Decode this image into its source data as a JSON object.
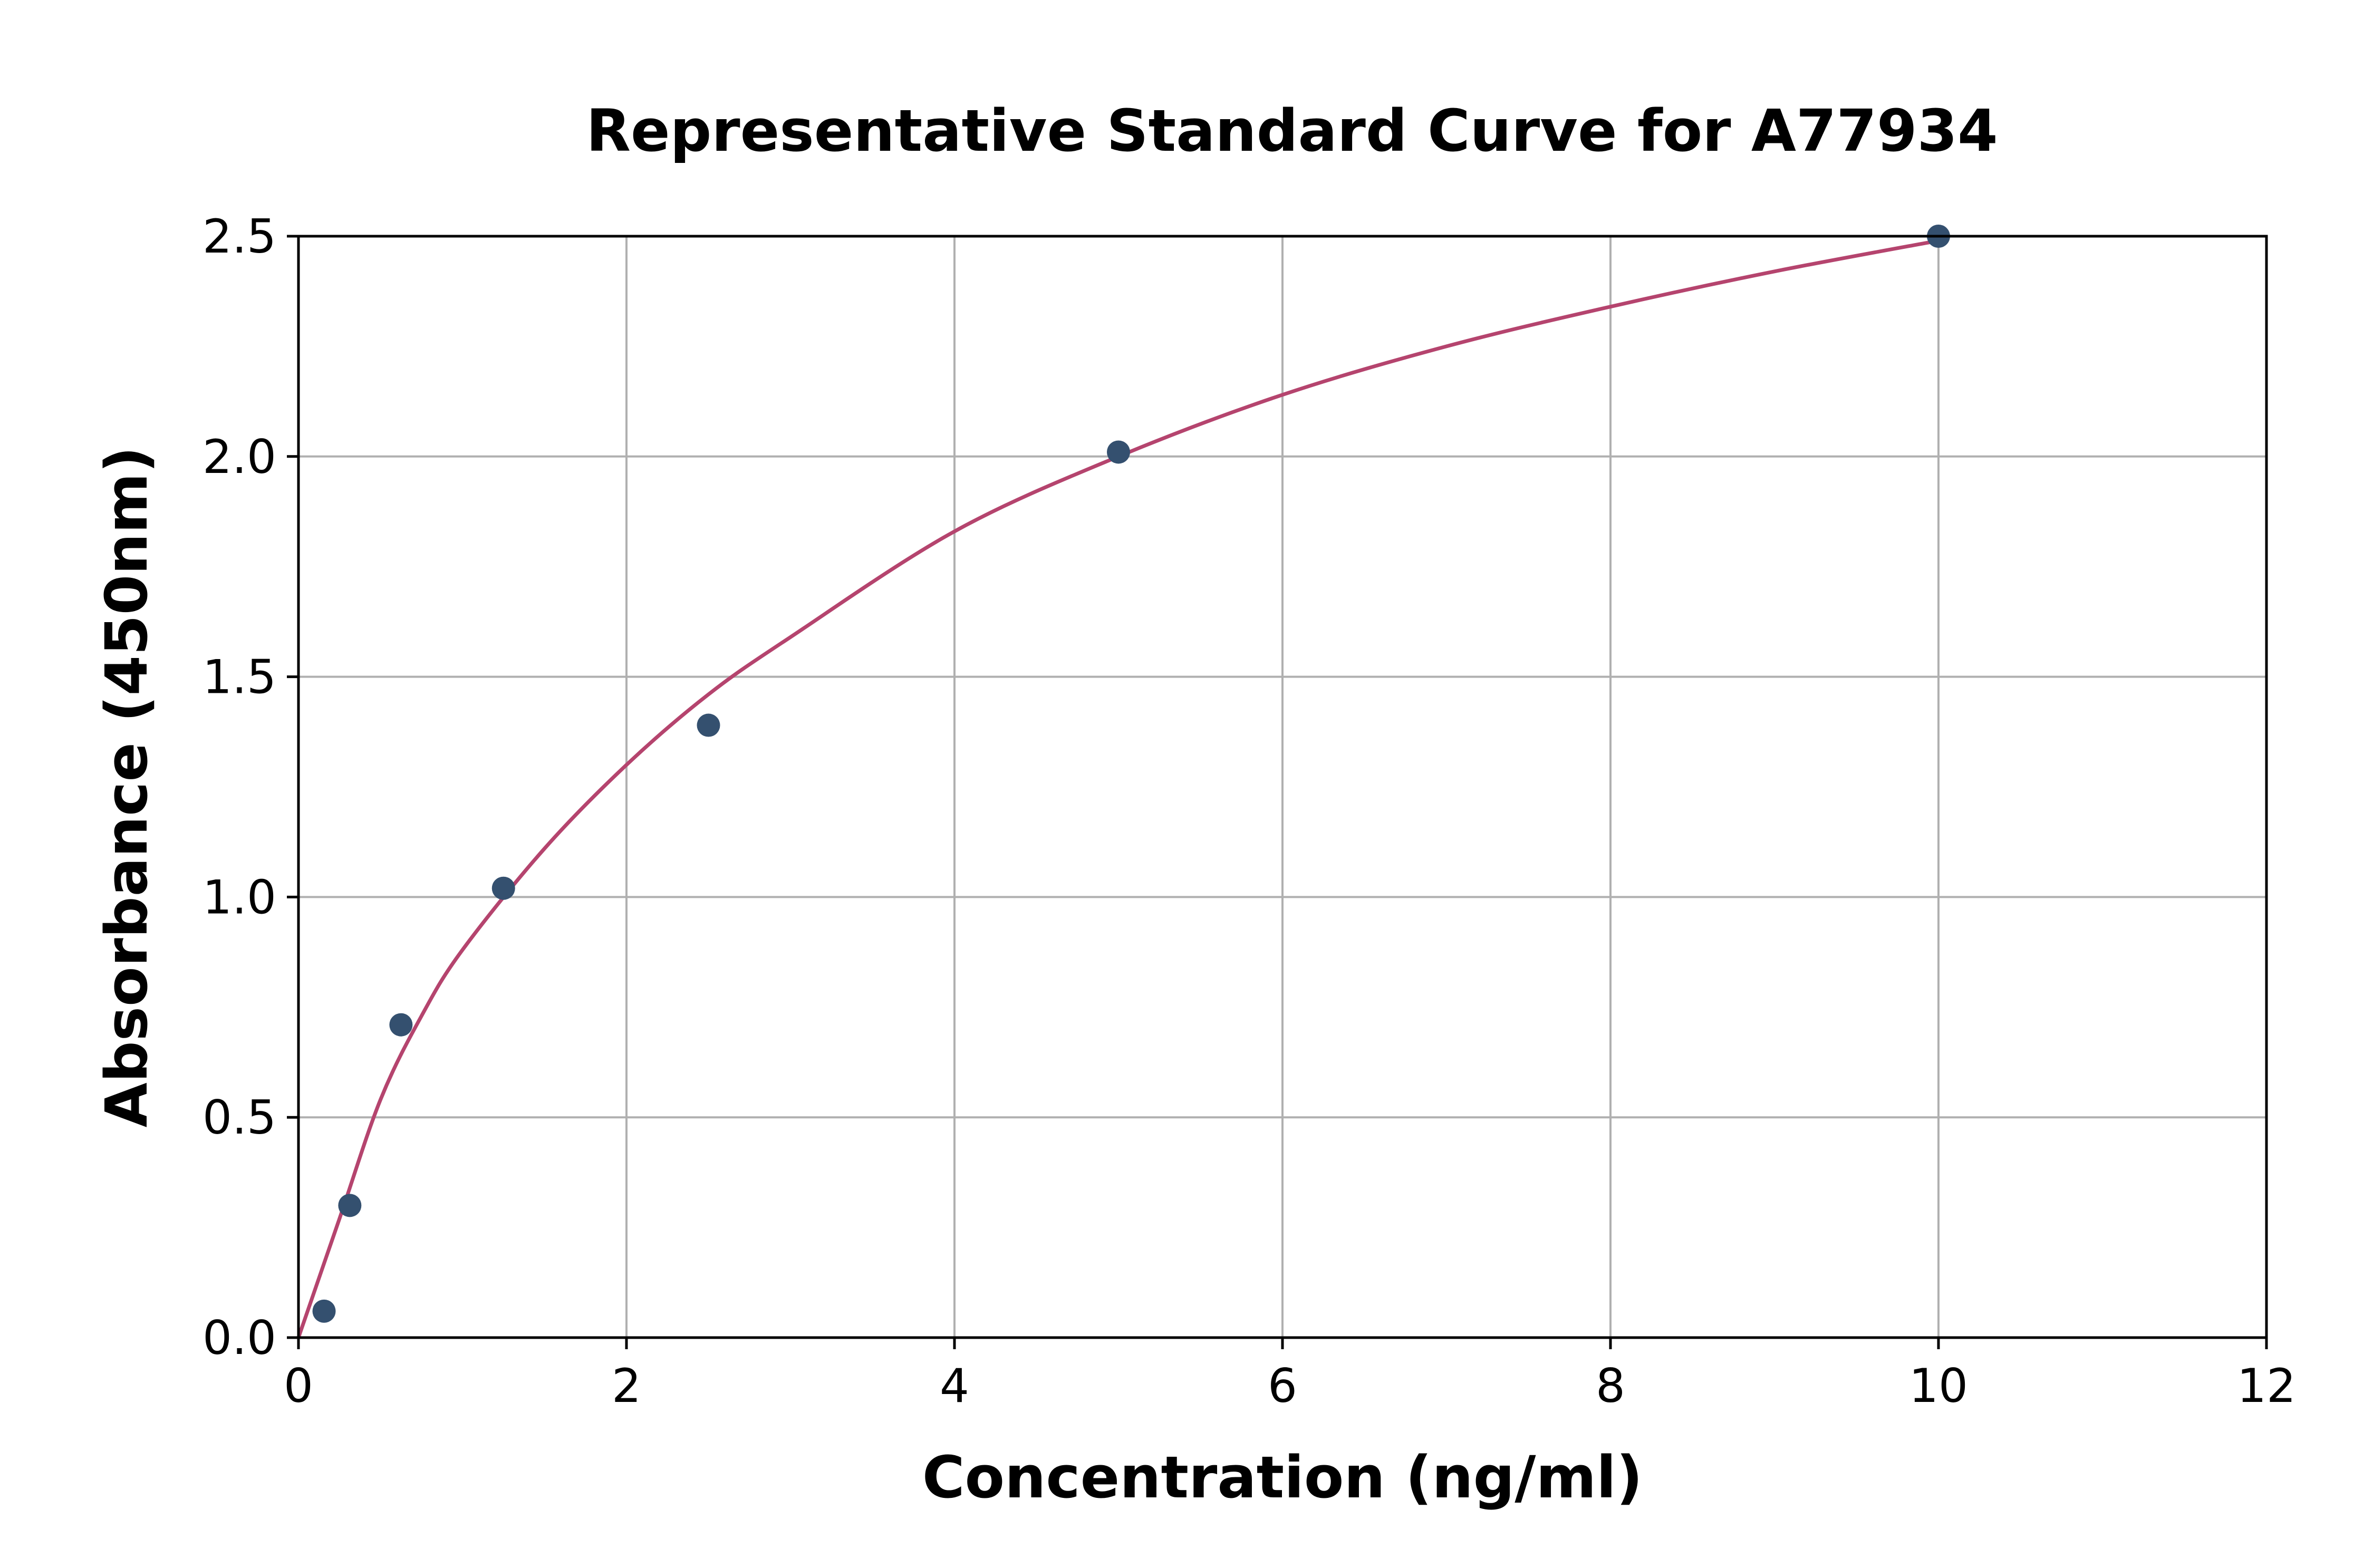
{
  "chart_data": {
    "type": "scatter",
    "title": "Representative Standard Curve for A77934",
    "xlabel": "Concentration (ng/ml)",
    "ylabel": "Absorbance (450nm)",
    "xlim": [
      0,
      12
    ],
    "ylim": [
      0,
      2.5
    ],
    "x_ticks": [
      "0",
      "2",
      "4",
      "6",
      "8",
      "10",
      "12"
    ],
    "y_ticks": [
      "0.0",
      "0.5",
      "1.0",
      "1.5",
      "2.0",
      "2.5"
    ],
    "grid": true,
    "series": [
      {
        "kind": "points",
        "color": "#34506f",
        "x": [
          0.156,
          0.313,
          0.625,
          1.25,
          2.5,
          5,
          10
        ],
        "y": [
          0.06,
          0.3,
          0.71,
          1.02,
          1.39,
          2.01,
          2.5
        ]
      },
      {
        "kind": "fit-curve",
        "color": "#b5446e",
        "x": [
          0,
          0.25,
          0.5,
          0.75,
          1,
          1.5,
          2,
          2.5,
          3,
          4,
          5,
          6,
          7,
          8,
          9,
          10
        ],
        "y": [
          0,
          0.27,
          0.54,
          0.73,
          0.88,
          1.11,
          1.3,
          1.46,
          1.59,
          1.83,
          2.0,
          2.14,
          2.25,
          2.34,
          2.42,
          2.49
        ]
      }
    ]
  }
}
